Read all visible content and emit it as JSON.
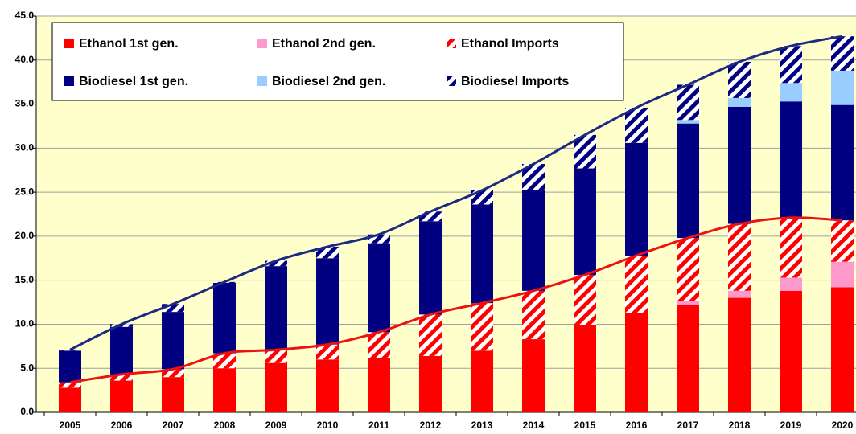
{
  "chart_data": {
    "type": "bar",
    "stacked": true,
    "categories": [
      "2005",
      "2006",
      "2007",
      "2008",
      "2009",
      "2010",
      "2011",
      "2012",
      "2013",
      "2014",
      "2015",
      "2016",
      "2017",
      "2018",
      "2019",
      "2020"
    ],
    "series": [
      {
        "name": "Ethanol 1st gen.",
        "color": "#ff0000",
        "hatch": false,
        "values": [
          2.8,
          3.6,
          4.0,
          5.0,
          5.6,
          6.0,
          6.2,
          6.4,
          7.0,
          8.3,
          9.9,
          11.3,
          12.2,
          13.0,
          13.8,
          14.2
        ]
      },
      {
        "name": "Ethanol 2nd gen.",
        "color": "#ff99cc",
        "hatch": false,
        "values": [
          0,
          0,
          0,
          0,
          0,
          0,
          0,
          0,
          0,
          0,
          0,
          0,
          0.4,
          0.8,
          1.5,
          2.9
        ]
      },
      {
        "name": "Ethanol Imports",
        "color": "#ff0000",
        "hatch": true,
        "total_line": "#ee1111",
        "values": [
          0.6,
          0.7,
          0.9,
          1.7,
          1.5,
          1.7,
          2.9,
          4.7,
          5.4,
          5.5,
          5.7,
          6.5,
          7.2,
          7.6,
          6.8,
          4.7
        ]
      },
      {
        "name": "Biodiesel 1st gen.",
        "color": "#000080",
        "hatch": false,
        "values": [
          3.6,
          5.4,
          6.5,
          8.0,
          9.5,
          9.8,
          10.1,
          10.6,
          11.2,
          11.4,
          12.1,
          12.8,
          13.0,
          13.3,
          13.2,
          13.1
        ]
      },
      {
        "name": "Biodiesel 2nd gen.",
        "color": "#99ccff",
        "hatch": false,
        "values": [
          0,
          0,
          0,
          0,
          0,
          0,
          0,
          0,
          0,
          0,
          0,
          0,
          0.4,
          1.0,
          2.1,
          3.9
        ]
      },
      {
        "name": "Biodiesel Imports",
        "color": "#000080",
        "hatch": true,
        "total_line": "#1c2a80",
        "values": [
          0.1,
          0.3,
          0.9,
          0.1,
          0.6,
          1.3,
          1.0,
          1.1,
          1.6,
          3.0,
          3.8,
          4.0,
          4.0,
          4.1,
          4.2,
          3.9
        ]
      }
    ],
    "ylim": [
      0,
      45
    ],
    "yticks": [
      {
        "value": 0,
        "label": "0.0"
      },
      {
        "value": 5,
        "label": "5.0"
      },
      {
        "value": 10,
        "label": "10.0"
      },
      {
        "value": 15,
        "label": "15.0"
      },
      {
        "value": 20,
        "label": "20.0"
      },
      {
        "value": 25,
        "label": "25.0"
      },
      {
        "value": 30,
        "label": "30.0"
      },
      {
        "value": 35,
        "label": "35.0"
      },
      {
        "value": 40,
        "label": "40.0"
      },
      {
        "value": 45,
        "label": "45.0"
      }
    ],
    "grid": true,
    "legend": "top-left",
    "plot_background": "#ffffcc"
  }
}
